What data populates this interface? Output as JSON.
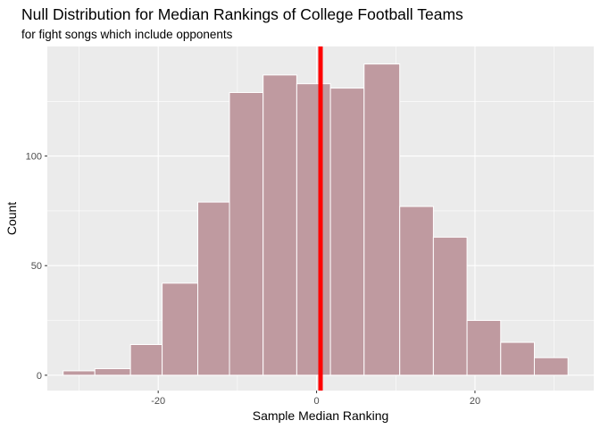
{
  "chart_data": {
    "type": "bar",
    "title": "Null Distribution for Median Rankings of College Football Teams",
    "subtitle": "for fight songs which include opponents",
    "xlabel": "Sample Median Ranking",
    "ylabel": "Count",
    "bin_width": 4,
    "bins": [
      {
        "x_min": -32.0,
        "x_max": -28.0,
        "count": 2
      },
      {
        "x_min": -28.0,
        "x_max": -23.5,
        "count": 3
      },
      {
        "x_min": -23.5,
        "x_max": -19.5,
        "count": 14
      },
      {
        "x_min": -19.5,
        "x_max": -15.0,
        "count": 42
      },
      {
        "x_min": -15.0,
        "x_max": -11.0,
        "count": 79
      },
      {
        "x_min": -11.0,
        "x_max": -6.75,
        "count": 129
      },
      {
        "x_min": -6.75,
        "x_max": -2.5,
        "count": 137
      },
      {
        "x_min": -2.5,
        "x_max": 1.75,
        "count": 133
      },
      {
        "x_min": 1.75,
        "x_max": 6.0,
        "count": 131
      },
      {
        "x_min": 6.0,
        "x_max": 10.5,
        "count": 142
      },
      {
        "x_min": 10.5,
        "x_max": 14.75,
        "count": 77
      },
      {
        "x_min": 14.75,
        "x_max": 19.0,
        "count": 63
      },
      {
        "x_min": 19.0,
        "x_max": 23.25,
        "count": 25
      },
      {
        "x_min": 23.25,
        "x_max": 27.5,
        "count": 15
      },
      {
        "x_min": 27.5,
        "x_max": 31.75,
        "count": 8
      }
    ],
    "observed_statistic": 0.5,
    "xlim": [
      -34,
      35
    ],
    "ylim": [
      -7,
      150
    ],
    "x_ticks": [
      -20,
      0,
      20
    ],
    "y_ticks": [
      0,
      50,
      100
    ],
    "x_tick_labels": [
      "-20",
      "0",
      "20"
    ],
    "y_tick_labels": [
      "0",
      "50",
      "100"
    ],
    "grid": true,
    "colors": {
      "panel": "#ebebeb",
      "grid": "#ffffff",
      "bar_fill": "#bf9aa0",
      "bar_outline": "#ffffff",
      "observed_line": "#ff0000"
    }
  }
}
